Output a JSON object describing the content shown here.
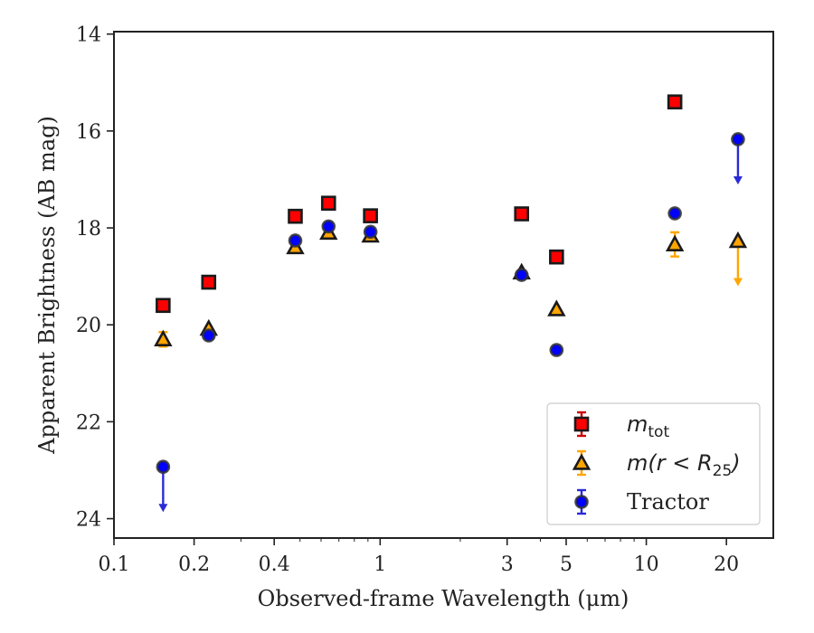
{
  "chart_data": {
    "type": "scatter",
    "x_scale": "log",
    "y_inverted": true,
    "xlabel": "Observed-frame Wavelength (μm)",
    "ylabel": "Apparent Brightness (AB mag)",
    "xlim": [
      0.1,
      30
    ],
    "ylim": [
      24.4,
      13.95
    ],
    "x_ticks": [
      {
        "value": 0.1,
        "label": "0.1"
      },
      {
        "value": 0.2,
        "label": "0.2"
      },
      {
        "value": 0.4,
        "label": "0.4"
      },
      {
        "value": 1,
        "label": "1"
      },
      {
        "value": 3,
        "label": "3"
      },
      {
        "value": 5,
        "label": "5"
      },
      {
        "value": 10,
        "label": "10"
      },
      {
        "value": 20,
        "label": "20"
      }
    ],
    "y_ticks": [
      {
        "value": 14,
        "label": "14"
      },
      {
        "value": 16,
        "label": "16"
      },
      {
        "value": 18,
        "label": "18"
      },
      {
        "value": 20,
        "label": "20"
      },
      {
        "value": 22,
        "label": "22"
      },
      {
        "value": 24,
        "label": "24"
      }
    ],
    "grid": false,
    "legend_position": "lower-right",
    "series": [
      {
        "name": "m_tot",
        "label_main": "m",
        "label_sub": "tot",
        "marker": "square",
        "color": "#ff0000",
        "edge_color": "#1a1a1a",
        "error_color": "#cc0000",
        "points": [
          {
            "x": 0.153,
            "y": 19.6
          },
          {
            "x": 0.227,
            "y": 19.12
          },
          {
            "x": 0.48,
            "y": 17.76
          },
          {
            "x": 0.64,
            "y": 17.49
          },
          {
            "x": 0.92,
            "y": 17.75
          },
          {
            "x": 3.4,
            "y": 17.71
          },
          {
            "x": 4.6,
            "y": 18.6
          },
          {
            "x": 12.8,
            "y": 15.4
          }
        ]
      },
      {
        "name": "m(r < R_25)",
        "label_main": "m(r < R",
        "label_sub": "25",
        "label_tail": ")",
        "marker": "triangle",
        "color": "#ffa500",
        "edge_color": "#1a1a1a",
        "error_color": "#ffa500",
        "points": [
          {
            "x": 0.153,
            "y": 20.3,
            "err": 0.15
          },
          {
            "x": 0.227,
            "y": 20.08
          },
          {
            "x": 0.48,
            "y": 18.4
          },
          {
            "x": 0.64,
            "y": 18.1
          },
          {
            "x": 0.92,
            "y": 18.16
          },
          {
            "x": 3.4,
            "y": 18.92
          },
          {
            "x": 4.6,
            "y": 19.68
          },
          {
            "x": 12.8,
            "y": 18.34,
            "err": 0.25
          },
          {
            "x": 22.1,
            "y": 18.27,
            "upper_limit": true
          }
        ]
      },
      {
        "name": "Tractor",
        "label_main": "Tractor",
        "marker": "circle",
        "color": "#0000ff",
        "edge_color": "#333333",
        "error_color": "#2a2ad8",
        "points": [
          {
            "x": 0.153,
            "y": 22.93,
            "upper_limit": true
          },
          {
            "x": 0.227,
            "y": 20.22
          },
          {
            "x": 0.48,
            "y": 18.26
          },
          {
            "x": 0.64,
            "y": 17.97
          },
          {
            "x": 0.92,
            "y": 18.08
          },
          {
            "x": 3.4,
            "y": 18.97
          },
          {
            "x": 4.6,
            "y": 20.52
          },
          {
            "x": 12.8,
            "y": 17.7
          },
          {
            "x": 22.1,
            "y": 16.17,
            "upper_limit": true
          }
        ]
      }
    ]
  }
}
